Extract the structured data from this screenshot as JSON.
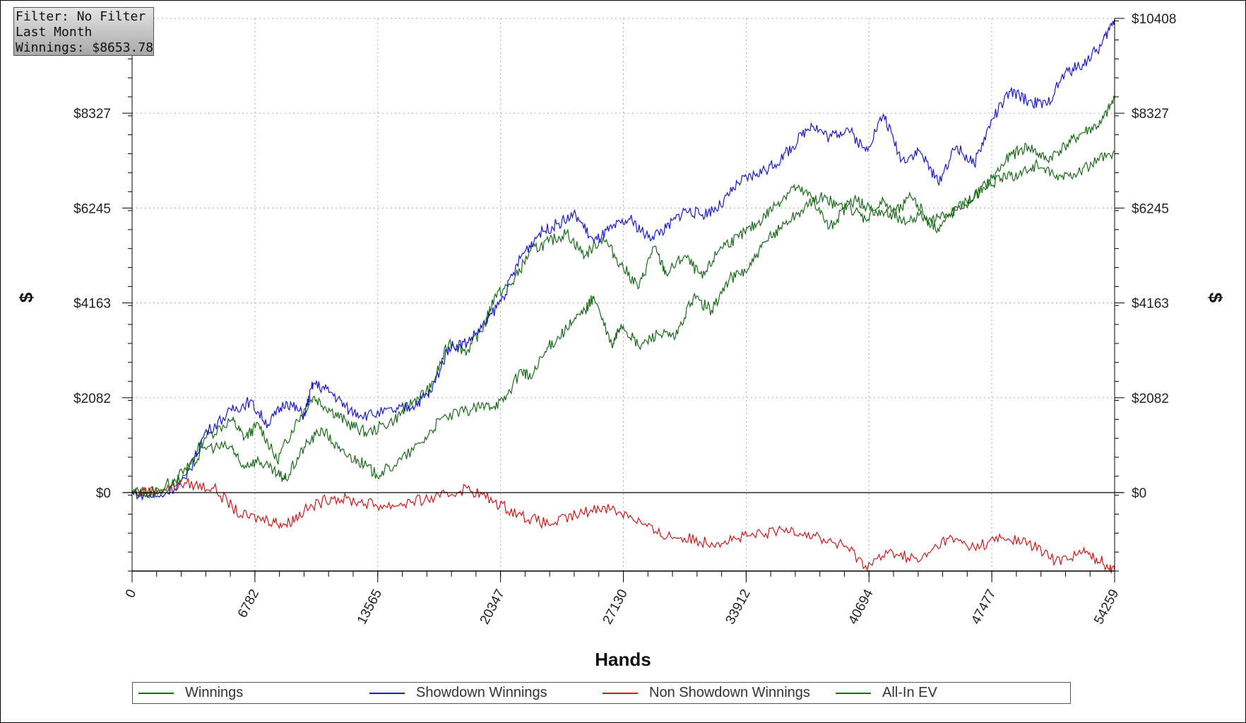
{
  "info_box": {
    "filter": "Filter: No Filter",
    "period": "Last Month",
    "winnings": "Winnings: $8653.78"
  },
  "chart_data": {
    "type": "line",
    "xlabel": "Hands",
    "ylabel": "$",
    "xlim": [
      0,
      54259
    ],
    "ylim": [
      -1700,
      10408
    ],
    "x_ticks": [
      0,
      6782,
      13565,
      20347,
      27130,
      33912,
      40694,
      47477,
      54259
    ],
    "x_tick_labels": [
      "0",
      "6782",
      "13565",
      "20347",
      "27130",
      "33912",
      "40694",
      "47477",
      "54259"
    ],
    "y_ticks": [
      0,
      2082,
      4163,
      6245,
      8327,
      10408
    ],
    "y_tick_labels_left": [
      "$0",
      "$2082",
      "$4163",
      "$6245",
      "$8327",
      ""
    ],
    "y_tick_labels_right": [
      "$0",
      "$2082",
      "$4163",
      "$6245",
      "$8327",
      "$10408"
    ],
    "grid": true,
    "legend_placement": "bottom",
    "series": [
      {
        "name": "Winnings",
        "color": "#1a6b1a",
        "x": [
          0,
          1500,
          3000,
          4000,
          5500,
          6200,
          7000,
          8000,
          9000,
          10000,
          11000,
          12000,
          13000,
          14500,
          15500,
          16500,
          17500,
          18500,
          19500,
          20000,
          21000,
          22000,
          23000,
          24000,
          25000,
          26000,
          27000,
          28000,
          28800,
          29500,
          30500,
          31500,
          32500,
          33500,
          34500,
          35500,
          36500,
          37500,
          38500,
          39500,
          40500,
          41500,
          42500,
          43500,
          44500,
          45500,
          46500,
          47500,
          48500,
          49500,
          50500,
          51500,
          52500,
          53500,
          54259
        ],
        "values": [
          0,
          50,
          500,
          1200,
          1600,
          1200,
          1500,
          700,
          1500,
          2100,
          1800,
          1500,
          1300,
          1600,
          2000,
          2300,
          3300,
          3100,
          3700,
          4300,
          4600,
          5300,
          5500,
          5700,
          5200,
          5600,
          5000,
          4500,
          5400,
          4800,
          5200,
          4700,
          5400,
          5600,
          5900,
          6300,
          6700,
          6500,
          5800,
          6300,
          6000,
          6400,
          5900,
          6100,
          5800,
          6200,
          6500,
          6900,
          7400,
          7600,
          7300,
          7600,
          7900,
          8100,
          8650
        ]
      },
      {
        "name": "Showdown Winnings",
        "color": "#1a1acc",
        "x": [
          0,
          1500,
          3000,
          4000,
          5500,
          6500,
          7500,
          8500,
          9500,
          10000,
          11000,
          12000,
          13000,
          14500,
          15500,
          16500,
          17500,
          18500,
          19500,
          20500,
          21500,
          22500,
          23500,
          24500,
          25500,
          26500,
          27500,
          28500,
          29500,
          30500,
          31500,
          32500,
          33500,
          34500,
          35500,
          36500,
          37500,
          38500,
          39500,
          40500,
          41500,
          42500,
          43500,
          44500,
          45500,
          46500,
          47500,
          48500,
          49500,
          50500,
          51500,
          52500,
          53500,
          54259
        ],
        "values": [
          0,
          -100,
          300,
          1300,
          1800,
          2000,
          1500,
          2000,
          1700,
          2400,
          2200,
          1800,
          1700,
          1800,
          1900,
          2200,
          3200,
          3300,
          3700,
          4300,
          5200,
          5700,
          5900,
          6100,
          5500,
          5800,
          6000,
          5600,
          5800,
          6200,
          6100,
          6300,
          6800,
          7000,
          7200,
          7600,
          8100,
          7800,
          8000,
          7500,
          8300,
          7300,
          7500,
          6800,
          7600,
          7200,
          8200,
          8800,
          8600,
          8500,
          9200,
          9400,
          9800,
          10400
        ]
      },
      {
        "name": "Non Showdown Winnings",
        "color": "#d01818",
        "x": [
          0,
          1500,
          3000,
          4500,
          6000,
          7500,
          8500,
          9500,
          11000,
          12500,
          14000,
          15500,
          17000,
          18500,
          20000,
          21500,
          23000,
          24500,
          26000,
          27500,
          29000,
          30500,
          32000,
          33500,
          35000,
          36500,
          38000,
          39500,
          40500,
          42000,
          43500,
          45000,
          46500,
          48000,
          49500,
          51000,
          52500,
          53500,
          54259
        ],
        "values": [
          0,
          50,
          200,
          100,
          -500,
          -600,
          -700,
          -400,
          -100,
          -200,
          -300,
          -200,
          -100,
          100,
          -200,
          -500,
          -700,
          -500,
          -300,
          -500,
          -900,
          -1000,
          -1100,
          -1000,
          -900,
          -800,
          -1000,
          -1200,
          -1600,
          -1300,
          -1500,
          -1000,
          -1200,
          -1000,
          -1100,
          -1500,
          -1300,
          -1500,
          -1700
        ]
      },
      {
        "name": "All-In EV",
        "color": "#1a6b1a",
        "x": [
          0,
          1500,
          3000,
          4000,
          5500,
          6000,
          7000,
          8000,
          8500,
          9500,
          10500,
          11500,
          12500,
          13500,
          14500,
          16000,
          17000,
          18500,
          19500,
          20500,
          21500,
          22000,
          23000,
          24000,
          25000,
          25500,
          26500,
          27000,
          28000,
          29000,
          30000,
          31000,
          32000,
          33000,
          34000,
          35000,
          36000,
          37000,
          38000,
          39000,
          40000,
          41000,
          42000,
          43000,
          44000,
          45000,
          46000,
          47000,
          48000,
          49000,
          50000,
          51000,
          52000,
          53000,
          54259
        ],
        "values": [
          0,
          0,
          400,
          1000,
          1000,
          600,
          700,
          400,
          300,
          1000,
          1400,
          900,
          700,
          400,
          600,
          1100,
          1600,
          1800,
          1900,
          2000,
          2700,
          2500,
          3200,
          3600,
          4000,
          4300,
          3200,
          3700,
          3200,
          3500,
          3400,
          4300,
          4000,
          4700,
          4900,
          5500,
          5900,
          6200,
          6500,
          6300,
          6400,
          6200,
          6100,
          6500,
          6000,
          6100,
          6300,
          6700,
          6900,
          7000,
          7200,
          6900,
          7000,
          7200,
          7500
        ]
      }
    ]
  }
}
